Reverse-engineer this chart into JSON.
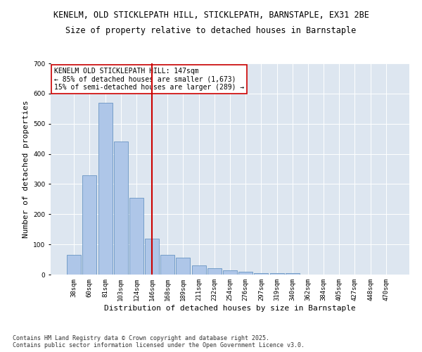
{
  "title_line1": "KENELM, OLD STICKLEPATH HILL, STICKLEPATH, BARNSTAPLE, EX31 2BE",
  "title_line2": "Size of property relative to detached houses in Barnstaple",
  "xlabel": "Distribution of detached houses by size in Barnstaple",
  "ylabel": "Number of detached properties",
  "categories": [
    "38sqm",
    "60sqm",
    "81sqm",
    "103sqm",
    "124sqm",
    "146sqm",
    "168sqm",
    "189sqm",
    "211sqm",
    "232sqm",
    "254sqm",
    "276sqm",
    "297sqm",
    "319sqm",
    "340sqm",
    "362sqm",
    "384sqm",
    "405sqm",
    "427sqm",
    "448sqm",
    "470sqm"
  ],
  "values": [
    65,
    330,
    570,
    440,
    255,
    120,
    65,
    55,
    30,
    20,
    15,
    10,
    5,
    5,
    5,
    0,
    0,
    0,
    0,
    0,
    0
  ],
  "bar_color": "#aec6e8",
  "bar_edge_color": "#5588bb",
  "highlight_bar_index": 5,
  "highlight_line_color": "#cc0000",
  "annotation_line1": "KENELM OLD STICKLEPATH HILL: 147sqm",
  "annotation_line2": "← 85% of detached houses are smaller (1,673)",
  "annotation_line3": "15% of semi-detached houses are larger (289) →",
  "annotation_box_color": "#ffffff",
  "annotation_box_edge": "#cc0000",
  "ylim": [
    0,
    700
  ],
  "yticks": [
    0,
    100,
    200,
    300,
    400,
    500,
    600,
    700
  ],
  "plot_bg_color": "#dde6f0",
  "footer_line1": "Contains HM Land Registry data © Crown copyright and database right 2025.",
  "footer_line2": "Contains public sector information licensed under the Open Government Licence v3.0.",
  "title_fontsize": 8.5,
  "subtitle_fontsize": 8.5,
  "axis_label_fontsize": 8.0,
  "tick_fontsize": 6.5,
  "annotation_fontsize": 7.0,
  "footer_fontsize": 6.0
}
